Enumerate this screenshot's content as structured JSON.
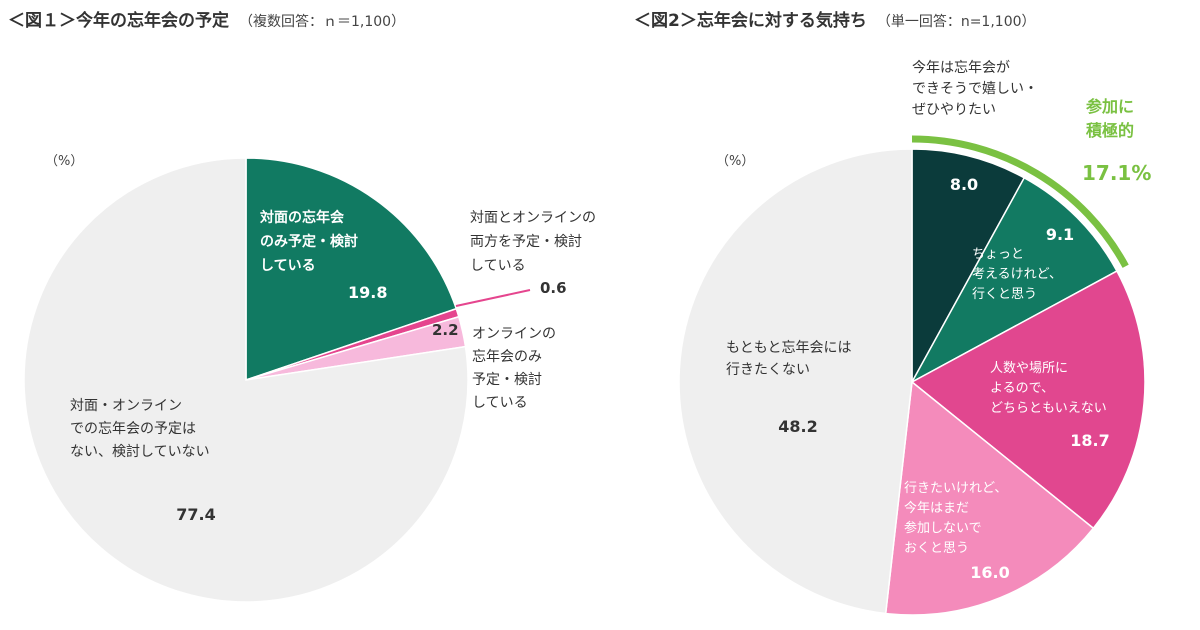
{
  "chart_data": [
    {
      "type": "pie",
      "title": "＜図１＞今年の忘年会の予定",
      "note": "（複数回答：ｎ＝1,100）",
      "unit": "（%）",
      "slices": [
        {
          "label": [
            "対面の忘年会",
            "のみ予定・検討",
            "している"
          ],
          "value": 19.8,
          "value_label": "19.8",
          "color": "#117a62"
        },
        {
          "label": [
            "対面とオンラインの",
            "両方を予定・検討",
            "している"
          ],
          "value": 0.6,
          "value_label": "0.6",
          "color": "#e5458e"
        },
        {
          "label": [
            "オンラインの",
            "忘年会のみ",
            "予定・検討",
            "している"
          ],
          "value": 2.2,
          "value_label": "2.2",
          "color": "#f7b9dc"
        },
        {
          "label": [
            "対面・オンライン",
            "での忘年会の予定は",
            "ない、検討していない"
          ],
          "value": 77.4,
          "value_label": "77.4",
          "color": "#efefef"
        }
      ]
    },
    {
      "type": "pie",
      "title": "＜図2＞忘年会に対する気持ち",
      "note": "（単一回答：n=1,100）",
      "unit": "（%）",
      "slices": [
        {
          "label": [
            "今年は忘年会が",
            "できそうで嬉しい・",
            "ぜひやりたい"
          ],
          "value": 8.0,
          "value_label": "8.0",
          "color": "#0b3b3b"
        },
        {
          "label": [
            "ちょっと",
            "考えるけれど、",
            "行くと思う"
          ],
          "value": 9.1,
          "value_label": "9.1",
          "color": "#127a62"
        },
        {
          "label": [
            "人数や場所に",
            "よるので、",
            "どちらともいえない"
          ],
          "value": 18.7,
          "value_label": "18.7",
          "color": "#e1478f"
        },
        {
          "label": [
            "行きたいけれど、",
            "今年はまだ",
            "参加しないで",
            "おくと思う"
          ],
          "value": 16.0,
          "value_label": "16.0",
          "color": "#f48bbb"
        },
        {
          "label": [
            "もともと忘年会には",
            "行きたくない"
          ],
          "value": 48.2,
          "value_label": "48.2",
          "color": "#efefef"
        }
      ],
      "callout": {
        "lines": [
          "参加に",
          "積極的"
        ],
        "value": "17.1%",
        "color": "#7ac142"
      }
    }
  ]
}
